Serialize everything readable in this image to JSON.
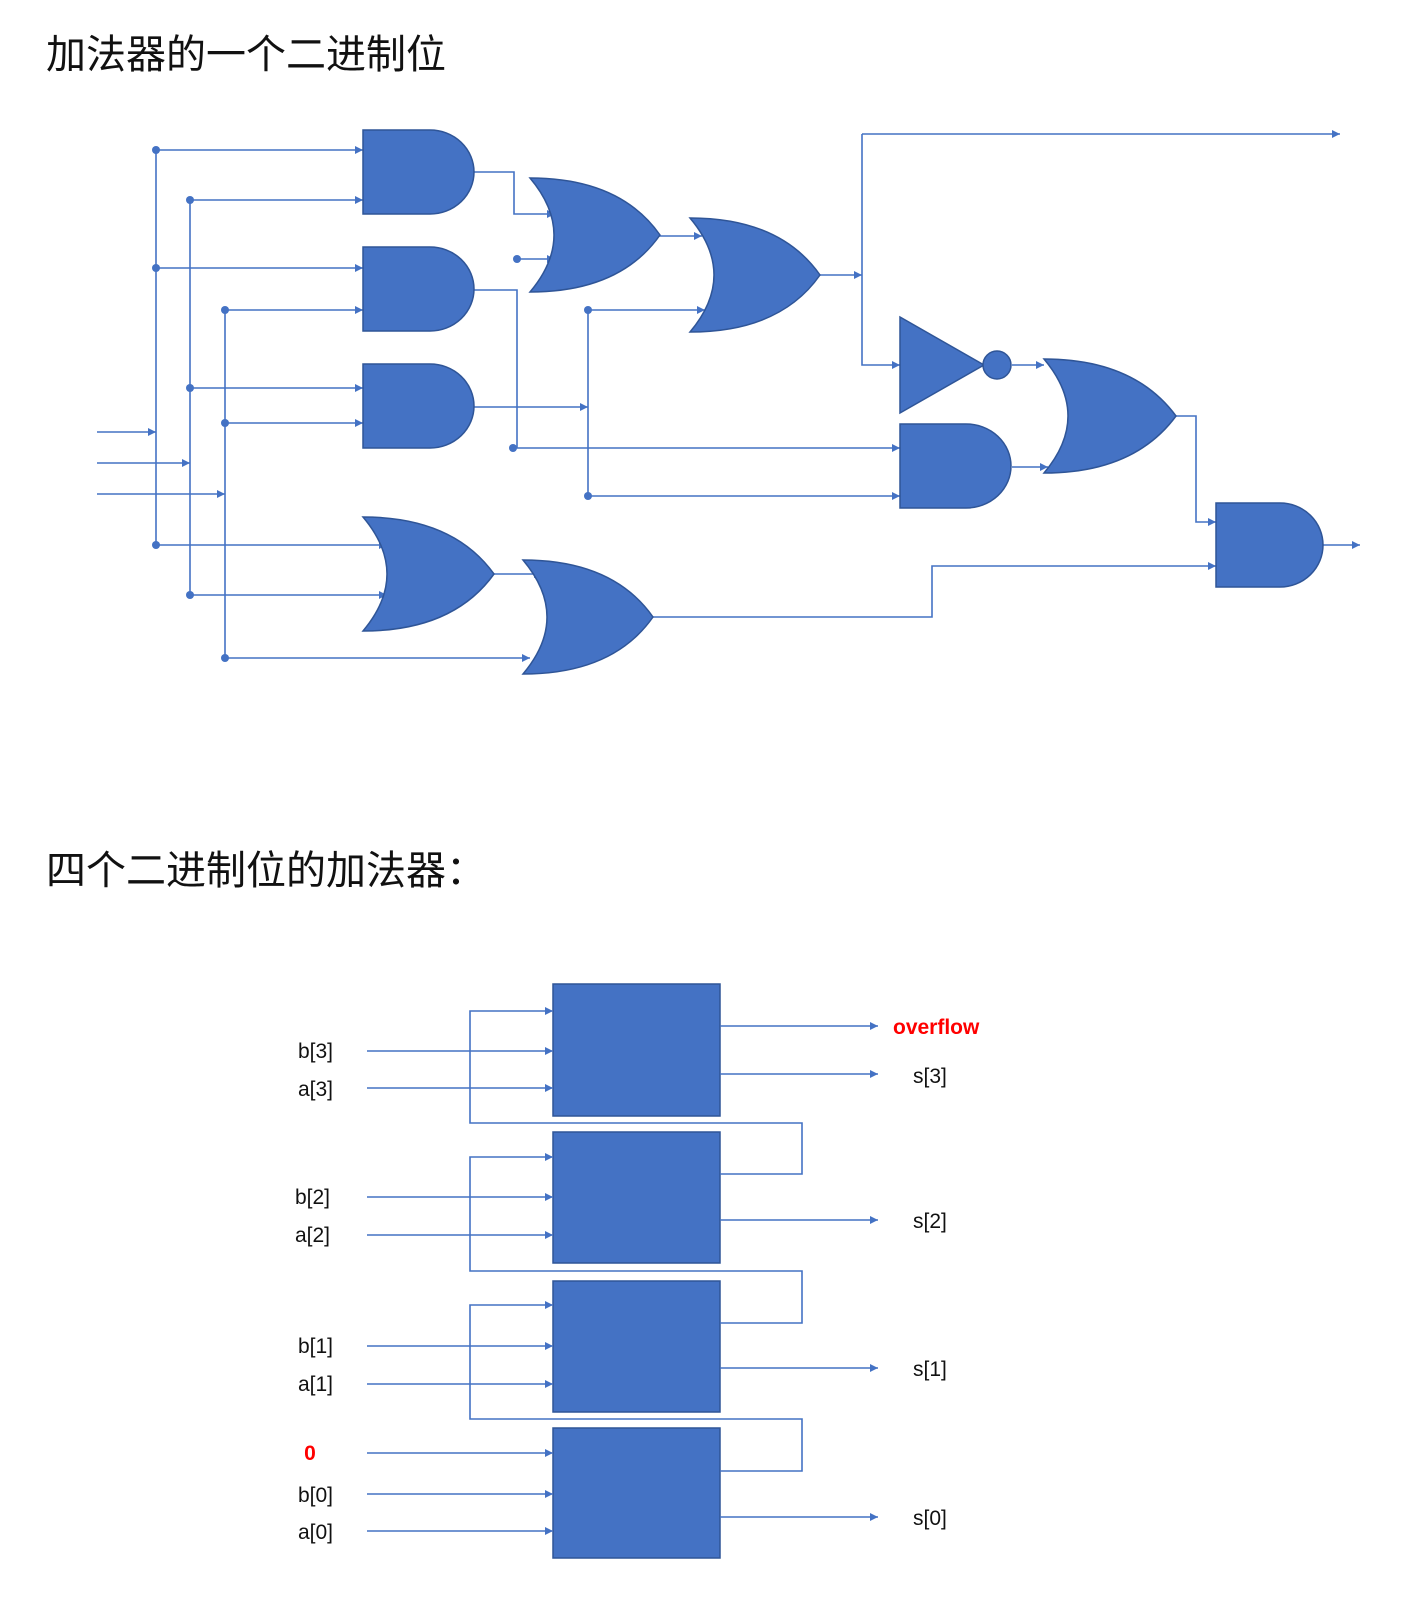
{
  "title_single_bit": "加法器的一个二进制位",
  "title_four_bit": "四个二进制位的加法器：",
  "colors": {
    "gate_fill": "#4472C4",
    "wire": "#4472C4",
    "highlight": "#FF0000"
  },
  "four_bit_adder": {
    "inputs": [
      {
        "b": "b[3]",
        "a": "a[3]"
      },
      {
        "b": "b[2]",
        "a": "a[2]"
      },
      {
        "b": "b[1]",
        "a": "a[1]"
      },
      {
        "b": "b[0]",
        "a": "a[0]"
      }
    ],
    "carry_in": "0",
    "outputs": [
      "s[3]",
      "s[2]",
      "s[1]",
      "s[0]"
    ],
    "overflow": "overflow"
  }
}
